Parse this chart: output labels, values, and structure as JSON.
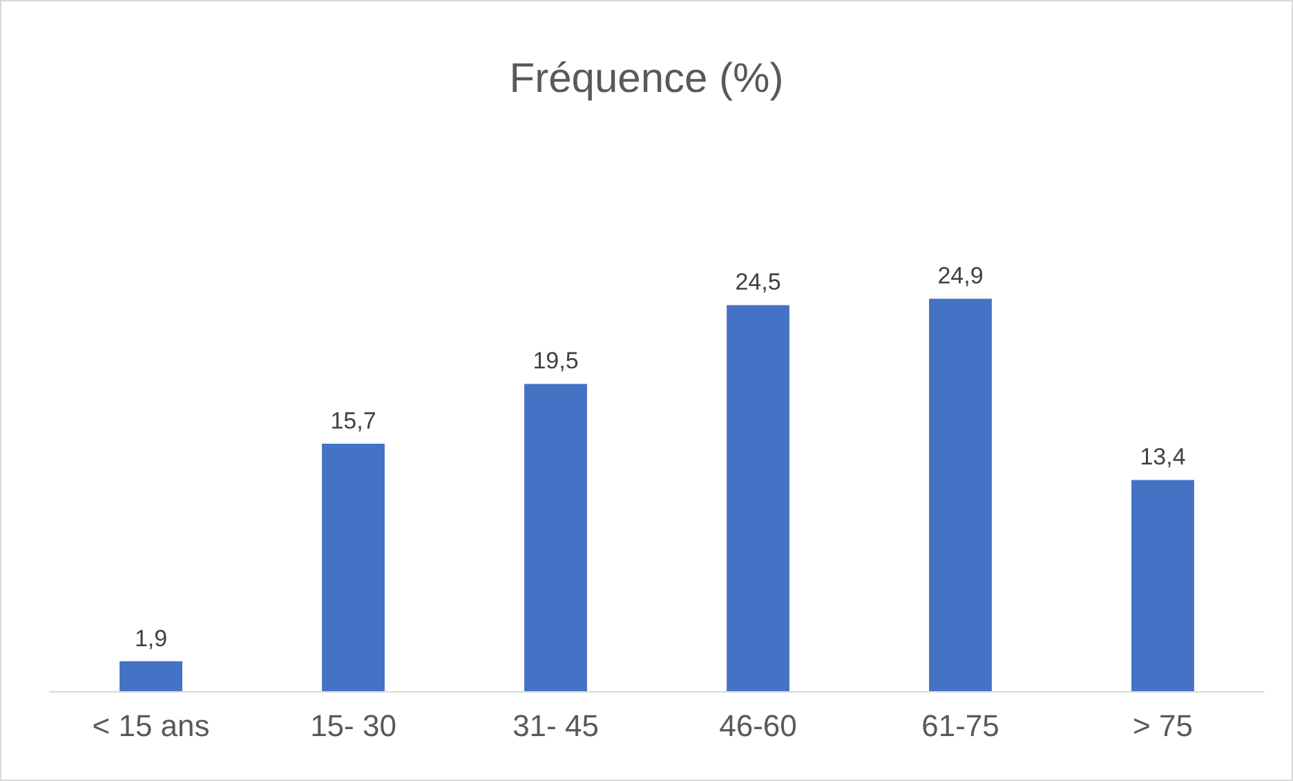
{
  "chart_data": {
    "type": "bar",
    "title": "Fréquence (%)",
    "categories": [
      "< 15 ans",
      "15- 30",
      "31- 45",
      "46-60",
      "61-75",
      "> 75"
    ],
    "values": [
      1.9,
      15.7,
      19.5,
      24.5,
      24.9,
      13.4
    ],
    "value_labels": [
      "1,9",
      "15,7",
      "19,5",
      "24,5",
      "24,9",
      "13,4"
    ],
    "color": "#4472c4"
  }
}
